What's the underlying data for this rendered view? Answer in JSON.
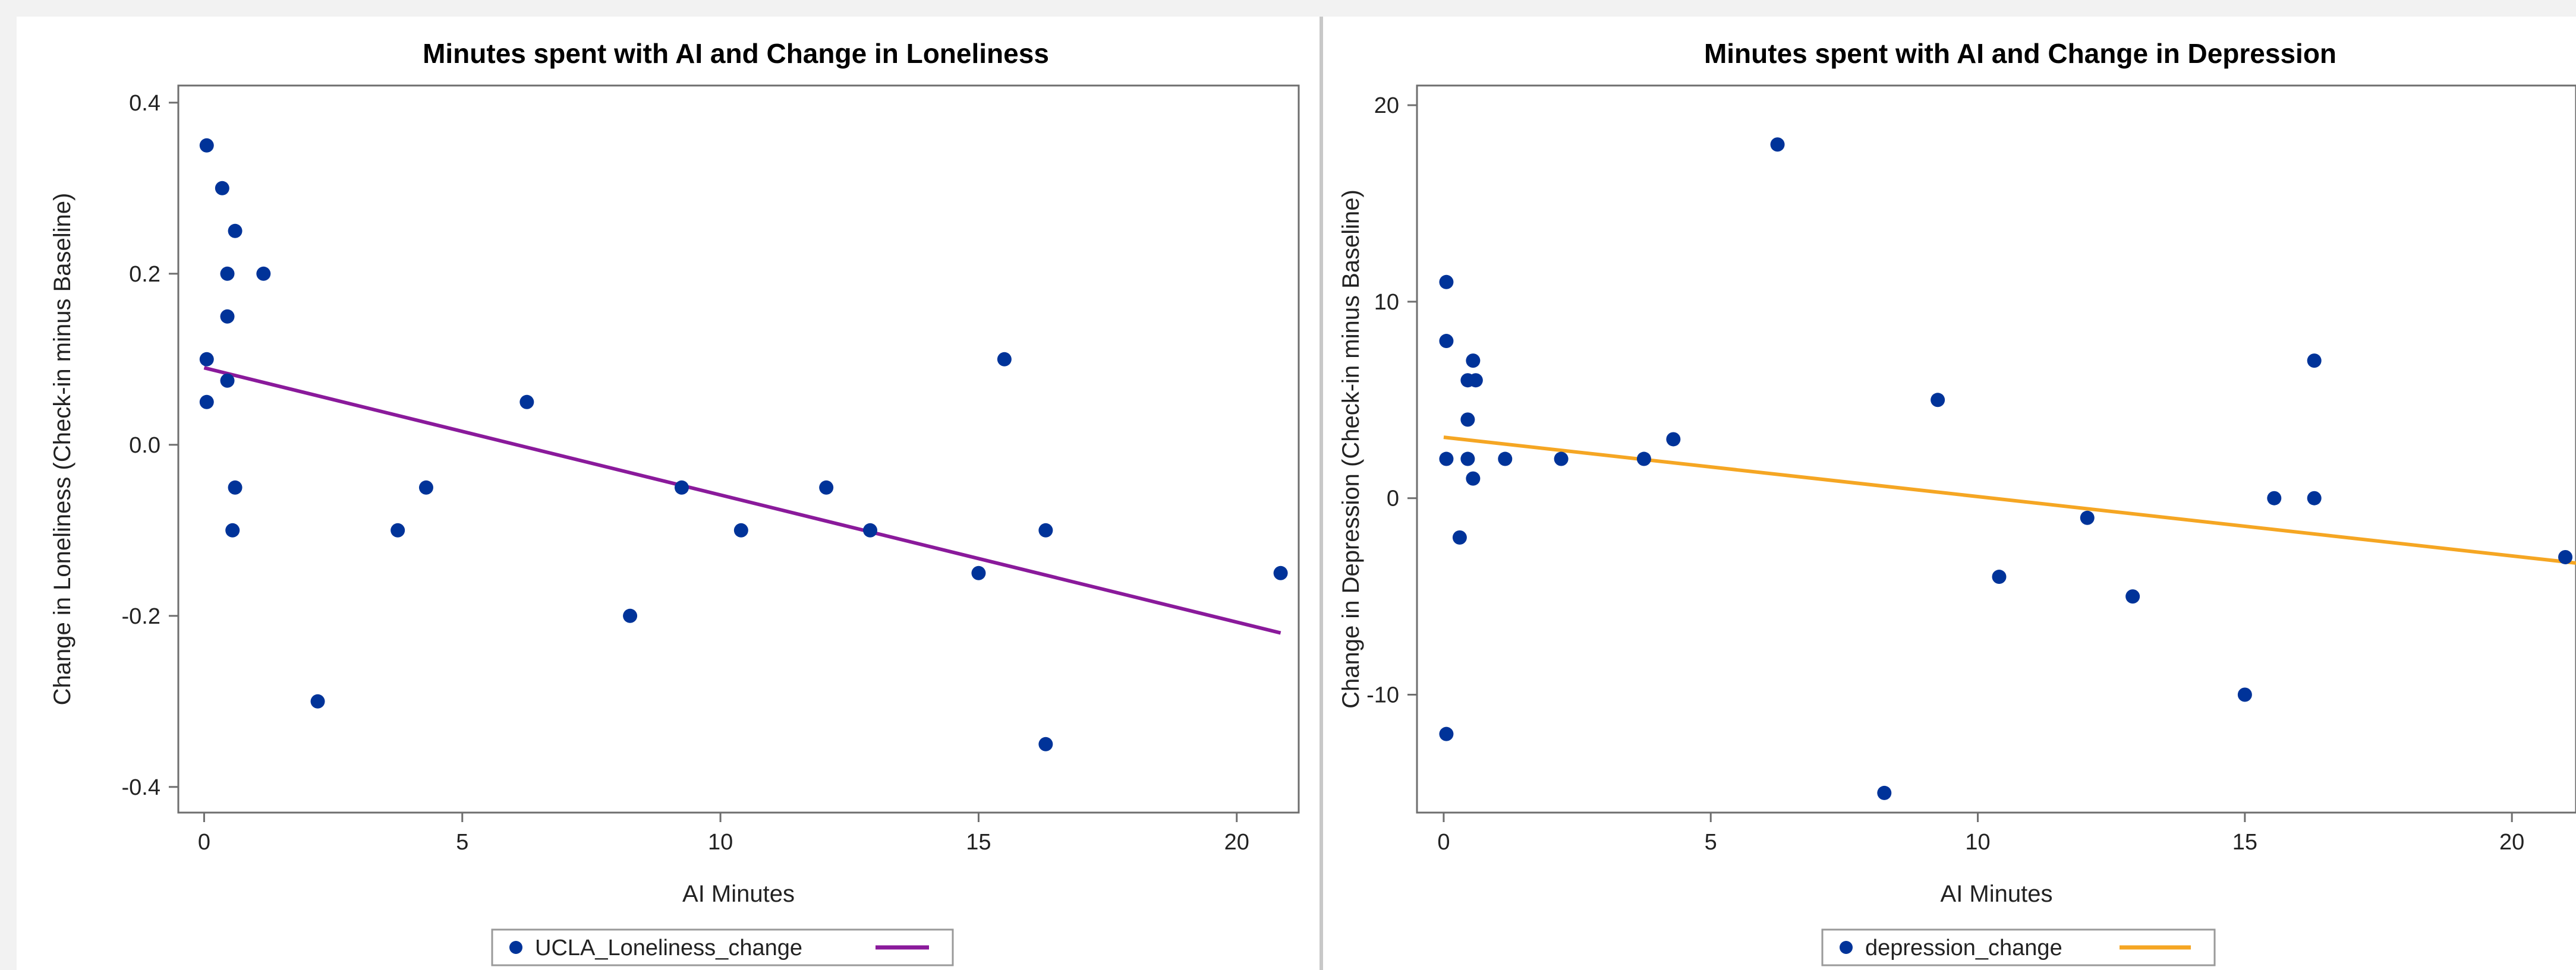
{
  "chart_data": [
    {
      "type": "scatter",
      "title": "Minutes spent with AI and Change in Loneliness",
      "xlabel": "AI Minutes",
      "ylabel": "Change in Loneliness (Check-in minus Baseline)",
      "xlim": [
        -0.5,
        21.2
      ],
      "ylim": [
        -0.43,
        0.42
      ],
      "xticks": [
        0,
        5,
        10,
        15,
        20
      ],
      "yticks": [
        0.4,
        0.2,
        0.0,
        -0.2,
        -0.4
      ],
      "ytick_labels": [
        "0.4",
        "0.2",
        "0.0",
        "-0.2",
        "-0.4"
      ],
      "grid": false,
      "legend_position": "bottom",
      "series": [
        {
          "name": "UCLA_Loneliness_change",
          "kind": "scatter",
          "color": "#003399",
          "points": [
            [
              0.05,
              0.35
            ],
            [
              0.35,
              0.3
            ],
            [
              0.6,
              0.25
            ],
            [
              0.45,
              0.2
            ],
            [
              1.15,
              0.2
            ],
            [
              0.45,
              0.15
            ],
            [
              0.05,
              0.1
            ],
            [
              0.45,
              0.075
            ],
            [
              0.05,
              0.05
            ],
            [
              0.6,
              -0.05
            ],
            [
              0.55,
              -0.1
            ],
            [
              2.2,
              -0.3
            ],
            [
              3.75,
              -0.1
            ],
            [
              4.3,
              -0.05
            ],
            [
              6.25,
              0.05
            ],
            [
              8.25,
              -0.2
            ],
            [
              9.25,
              -0.05
            ],
            [
              10.4,
              -0.1
            ],
            [
              12.05,
              -0.05
            ],
            [
              12.9,
              -0.1
            ],
            [
              15.0,
              -0.15
            ],
            [
              15.5,
              0.1
            ],
            [
              16.3,
              -0.1
            ],
            [
              16.3,
              -0.35
            ],
            [
              20.85,
              -0.15
            ]
          ]
        },
        {
          "name": "",
          "kind": "regression_line",
          "color": "#8a1a9b",
          "points": [
            [
              0.0,
              0.09
            ],
            [
              20.85,
              -0.22
            ]
          ]
        }
      ],
      "legend": [
        {
          "label": "UCLA_Loneliness_change",
          "marker": "dot",
          "color": "#003399"
        },
        {
          "label": "",
          "marker": "line",
          "color": "#8a1a9b"
        }
      ]
    },
    {
      "type": "scatter",
      "title": "Minutes spent with AI and Change in Depression",
      "xlabel": "AI Minutes",
      "ylabel": "Change in Depression (Check-in minus Baseline)",
      "xlim": [
        -0.5,
        21.2
      ],
      "ylim": [
        -16,
        21
      ],
      "xticks": [
        0,
        5,
        10,
        15,
        20
      ],
      "yticks": [
        20,
        10,
        0,
        -10
      ],
      "ytick_labels": [
        "20",
        "10",
        "0",
        "-10"
      ],
      "grid": false,
      "legend_position": "bottom",
      "series": [
        {
          "name": "depression_change",
          "kind": "scatter",
          "color": "#003399",
          "points": [
            [
              0.05,
              11
            ],
            [
              0.05,
              8
            ],
            [
              0.05,
              2
            ],
            [
              0.05,
              -12
            ],
            [
              0.3,
              -2
            ],
            [
              0.45,
              6
            ],
            [
              0.45,
              4
            ],
            [
              0.45,
              2
            ],
            [
              0.55,
              7
            ],
            [
              0.6,
              6
            ],
            [
              0.55,
              1
            ],
            [
              1.15,
              2
            ],
            [
              2.2,
              2
            ],
            [
              3.75,
              2
            ],
            [
              4.3,
              3
            ],
            [
              6.25,
              18
            ],
            [
              8.25,
              -15
            ],
            [
              9.25,
              5
            ],
            [
              10.4,
              -4
            ],
            [
              12.05,
              -1
            ],
            [
              12.9,
              -5
            ],
            [
              15.0,
              -10
            ],
            [
              15.55,
              0
            ],
            [
              16.3,
              7
            ],
            [
              16.3,
              0
            ],
            [
              21.0,
              -3
            ]
          ]
        },
        {
          "name": "",
          "kind": "regression_line",
          "color": "#f5a623",
          "points": [
            [
              0.0,
              3.1
            ],
            [
              21.2,
              -3.3
            ]
          ]
        }
      ],
      "legend": [
        {
          "label": "depression_change",
          "marker": "dot",
          "color": "#003399"
        },
        {
          "label": "",
          "marker": "line",
          "color": "#f5a623"
        }
      ]
    }
  ]
}
